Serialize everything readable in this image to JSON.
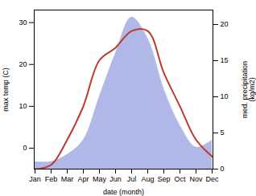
{
  "chart_data": {
    "type": "line",
    "categories": [
      "Jan",
      "Feb",
      "Mar",
      "Apr",
      "May",
      "Jun",
      "Jul",
      "Aug",
      "Sep",
      "Oct",
      "Nov",
      "Dec"
    ],
    "xlabel": "date (month)",
    "ylabel": "max temp (C)",
    "y2label": "med. precipitation\n(kg/m2)",
    "ylim": [
      -5,
      33
    ],
    "yticks": [
      0,
      10,
      20,
      30
    ],
    "y2lim": [
      0,
      22
    ],
    "y2ticks": [
      0,
      5,
      10,
      15,
      20
    ],
    "series": [
      {
        "type": "area",
        "axis": "y2",
        "color": "#b0b8e8",
        "values": [
          1,
          1,
          2,
          4,
          10,
          16,
          21,
          18,
          11,
          6,
          3,
          4
        ]
      },
      {
        "type": "line",
        "color": "#c0392b",
        "values": [
          -5,
          -4,
          2,
          10,
          21,
          24,
          28,
          28,
          18,
          10,
          2,
          -2
        ]
      }
    ]
  }
}
